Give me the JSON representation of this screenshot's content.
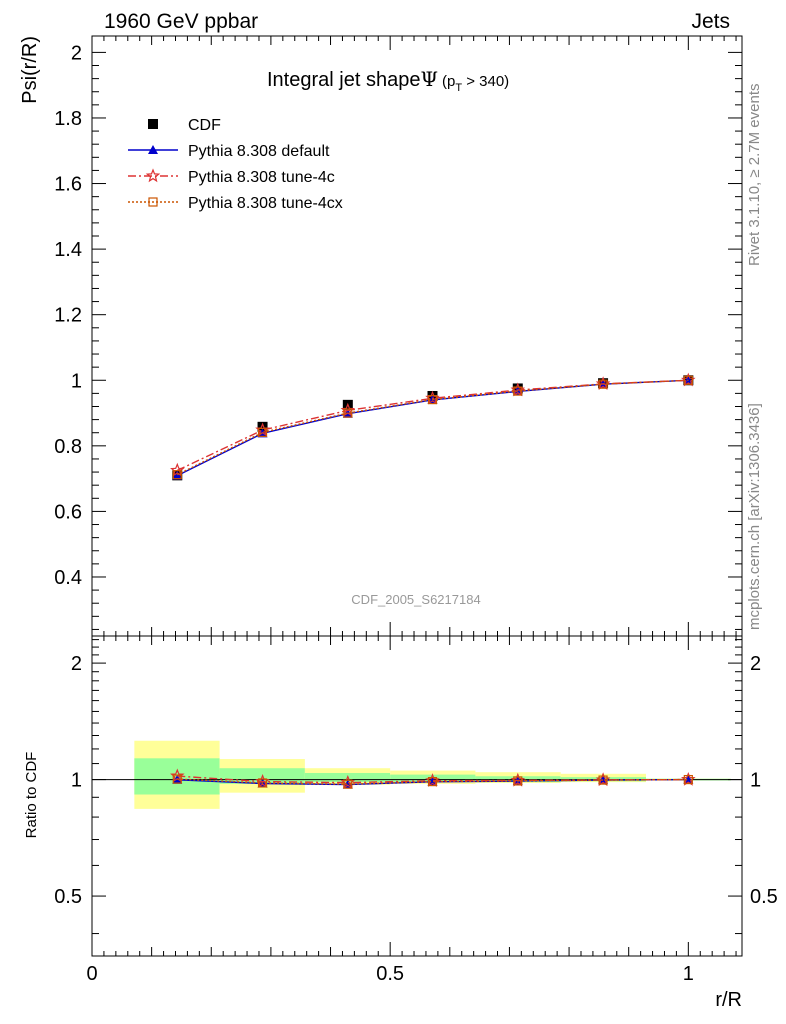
{
  "header": {
    "left": "1960 GeV ppbar",
    "right": "Jets"
  },
  "side_labels": {
    "top": "Rivet 3.1.10, ≥ 2.7M events",
    "bottom": "mcplots.cern.ch [arXiv:1306.3436]"
  },
  "analysis_id": "CDF_2005_S6217184",
  "colors": {
    "cdf": "#000000",
    "default": "#0000cc",
    "tune4c": "#dd3333",
    "tune4cx": "#cc5500",
    "band_inner": "#99ff99",
    "band_outer": "#ffff99"
  },
  "chart_data": [
    {
      "type": "line",
      "title_main": "Integral jet shape",
      "title_symbol": "Ψ",
      "title_cut_open": "(p",
      "title_cut_sub": "T",
      "title_cut_close": " > 340)",
      "ylabel": "Psi(r/R)",
      "xlim": [
        0,
        1.09
      ],
      "ylim": [
        0.22,
        2.05
      ],
      "yticks": [
        0.4,
        0.6,
        0.8,
        1,
        1.2,
        1.4,
        1.6,
        1.8,
        2
      ],
      "ytick_labels": [
        "0.4",
        "0.6",
        "0.8",
        "1",
        "1.2",
        "1.4",
        "1.6",
        "1.8",
        "2"
      ],
      "x": [
        0.143,
        0.286,
        0.429,
        0.571,
        0.714,
        0.857,
        1.0
      ],
      "series": [
        {
          "name": "CDF",
          "marker": "square",
          "values": [
            0.71,
            0.858,
            0.925,
            0.952,
            0.975,
            0.991,
            1.0
          ]
        },
        {
          "name": "Pythia 8.308 default",
          "marker": "triangle",
          "values": [
            0.709,
            0.838,
            0.898,
            0.94,
            0.966,
            0.988,
            1.0
          ]
        },
        {
          "name": "Pythia 8.308 tune-4c",
          "marker": "star",
          "values": [
            0.725,
            0.848,
            0.908,
            0.945,
            0.97,
            0.989,
            1.0
          ]
        },
        {
          "name": "Pythia 8.308 tune-4cx",
          "marker": "open-square",
          "values": [
            0.712,
            0.841,
            0.9,
            0.941,
            0.967,
            0.988,
            1.0
          ]
        }
      ],
      "legend_position": "top-left"
    },
    {
      "type": "line",
      "ylabel": "Ratio to CDF",
      "xlabel": "r/R",
      "xlim": [
        0,
        1.09
      ],
      "ylim": [
        0.35,
        2.35
      ],
      "log_y": true,
      "yticks": [
        0.5,
        1,
        2
      ],
      "ytick_labels": [
        "0.5",
        "1",
        "2"
      ],
      "xticks": [
        0,
        0.5,
        1
      ],
      "xtick_labels": [
        "0",
        "0.5",
        "1"
      ],
      "x": [
        0.143,
        0.286,
        0.429,
        0.571,
        0.714,
        0.857,
        1.0
      ],
      "bins": [
        [
          0.071,
          0.214
        ],
        [
          0.214,
          0.357
        ],
        [
          0.357,
          0.5
        ],
        [
          0.5,
          0.643
        ],
        [
          0.643,
          0.786
        ],
        [
          0.786,
          0.929
        ],
        [
          0.929,
          1.071
        ]
      ],
      "band_inner": [
        [
          0.915,
          1.135
        ],
        [
          0.975,
          1.07
        ],
        [
          0.985,
          1.04
        ],
        [
          0.985,
          1.03
        ],
        [
          0.985,
          1.02
        ],
        [
          0.99,
          1.015
        ],
        [
          0.995,
          1.005
        ]
      ],
      "band_outer": [
        [
          0.84,
          1.26
        ],
        [
          0.925,
          1.13
        ],
        [
          0.97,
          1.07
        ],
        [
          0.975,
          1.055
        ],
        [
          0.98,
          1.045
        ],
        [
          0.985,
          1.035
        ],
        [
          0.995,
          1.005
        ]
      ],
      "series": [
        {
          "name": "Pythia 8.308 default",
          "values": [
            0.999,
            0.977,
            0.971,
            0.987,
            0.991,
            0.997,
            1.0
          ]
        },
        {
          "name": "Pythia 8.308 tune-4c",
          "values": [
            1.021,
            0.988,
            0.982,
            0.993,
            0.995,
            0.998,
            1.0
          ]
        },
        {
          "name": "Pythia 8.308 tune-4cx",
          "values": [
            1.003,
            0.98,
            0.973,
            0.988,
            0.992,
            0.997,
            1.0
          ]
        }
      ]
    }
  ]
}
